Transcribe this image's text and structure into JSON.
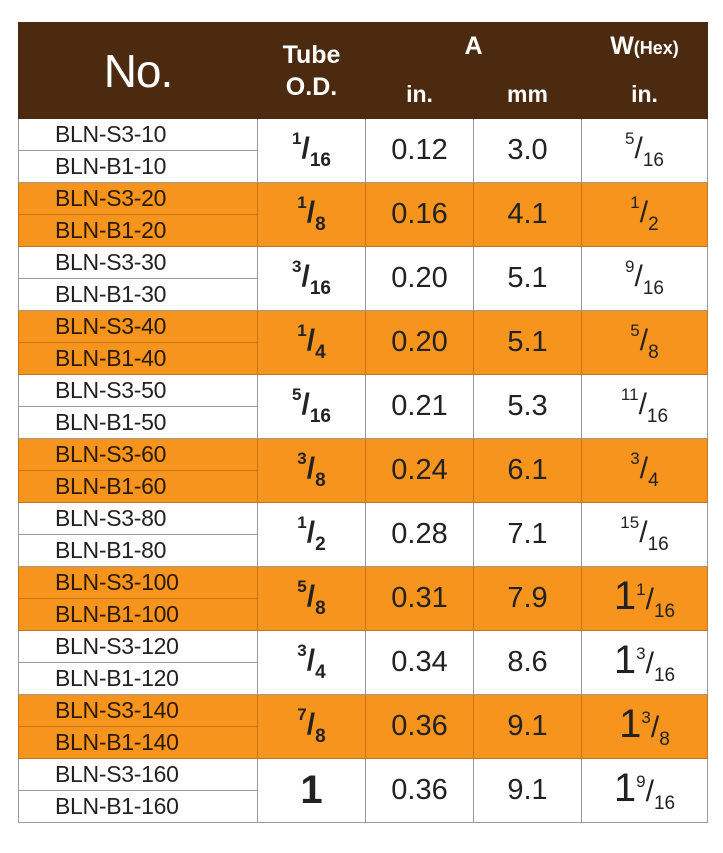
{
  "header": {
    "no": "No.",
    "tube_line1": "Tube",
    "tube_line2": "O.D.",
    "a": "A",
    "w": "W",
    "w_suffix": "(Hex)",
    "a_in": "in.",
    "a_mm": "mm",
    "w_in": "in."
  },
  "colors": {
    "header_bg": "#4b2a10",
    "stripe": "#f7941d",
    "plain": "#ffffff"
  },
  "rows": [
    {
      "models": [
        "BLN-S3-10",
        "BLN-B1-10"
      ],
      "od": {
        "whole": "",
        "num": "1",
        "den": "16"
      },
      "a_in": "0.12",
      "a_mm": "3.0",
      "w": {
        "whole": "",
        "num": "5",
        "den": "16"
      }
    },
    {
      "models": [
        "BLN-S3-20",
        "BLN-B1-20"
      ],
      "od": {
        "whole": "",
        "num": "1",
        "den": "8"
      },
      "a_in": "0.16",
      "a_mm": "4.1",
      "w": {
        "whole": "",
        "num": "1",
        "den": "2"
      }
    },
    {
      "models": [
        "BLN-S3-30",
        "BLN-B1-30"
      ],
      "od": {
        "whole": "",
        "num": "3",
        "den": "16"
      },
      "a_in": "0.20",
      "a_mm": "5.1",
      "w": {
        "whole": "",
        "num": "9",
        "den": "16"
      }
    },
    {
      "models": [
        "BLN-S3-40",
        "BLN-B1-40"
      ],
      "od": {
        "whole": "",
        "num": "1",
        "den": "4"
      },
      "a_in": "0.20",
      "a_mm": "5.1",
      "w": {
        "whole": "",
        "num": "5",
        "den": "8"
      }
    },
    {
      "models": [
        "BLN-S3-50",
        "BLN-B1-50"
      ],
      "od": {
        "whole": "",
        "num": "5",
        "den": "16"
      },
      "a_in": "0.21",
      "a_mm": "5.3",
      "w": {
        "whole": "",
        "num": "11",
        "den": "16"
      }
    },
    {
      "models": [
        "BLN-S3-60",
        "BLN-B1-60"
      ],
      "od": {
        "whole": "",
        "num": "3",
        "den": "8"
      },
      "a_in": "0.24",
      "a_mm": "6.1",
      "w": {
        "whole": "",
        "num": "3",
        "den": "4"
      }
    },
    {
      "models": [
        "BLN-S3-80",
        "BLN-B1-80"
      ],
      "od": {
        "whole": "",
        "num": "1",
        "den": "2"
      },
      "a_in": "0.28",
      "a_mm": "7.1",
      "w": {
        "whole": "",
        "num": "15",
        "den": "16"
      }
    },
    {
      "models": [
        "BLN-S3-100",
        "BLN-B1-100"
      ],
      "od": {
        "whole": "",
        "num": "5",
        "den": "8"
      },
      "a_in": "0.31",
      "a_mm": "7.9",
      "w": {
        "whole": "1",
        "num": "1",
        "den": "16"
      }
    },
    {
      "models": [
        "BLN-S3-120",
        "BLN-B1-120"
      ],
      "od": {
        "whole": "",
        "num": "3",
        "den": "4"
      },
      "a_in": "0.34",
      "a_mm": "8.6",
      "w": {
        "whole": "1",
        "num": "3",
        "den": "16"
      }
    },
    {
      "models": [
        "BLN-S3-140",
        "BLN-B1-140"
      ],
      "od": {
        "whole": "",
        "num": "7",
        "den": "8"
      },
      "a_in": "0.36",
      "a_mm": "9.1",
      "w": {
        "whole": "1",
        "num": "3",
        "den": "8"
      }
    },
    {
      "models": [
        "BLN-S3-160",
        "BLN-B1-160"
      ],
      "od": {
        "whole": "1",
        "num": "",
        "den": ""
      },
      "a_in": "0.36",
      "a_mm": "9.1",
      "w": {
        "whole": "1",
        "num": "9",
        "den": "16"
      }
    }
  ]
}
